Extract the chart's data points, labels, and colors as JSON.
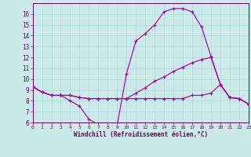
{
  "bg_color": "#cceaea",
  "line_color": "#aa00aa",
  "grid_color": "#aadddd",
  "xlabel": "Windchill (Refroidissement éolien,°C)",
  "xlabel_color": "#660066",
  "tick_color": "#660066",
  "ylim": [
    6,
    17
  ],
  "xlim": [
    0,
    23
  ],
  "yticks": [
    6,
    7,
    8,
    9,
    10,
    11,
    12,
    13,
    14,
    15,
    16
  ],
  "xticks": [
    0,
    1,
    2,
    3,
    4,
    5,
    6,
    7,
    8,
    9,
    10,
    11,
    12,
    13,
    14,
    15,
    16,
    17,
    18,
    19,
    20,
    21,
    22,
    23
  ],
  "series": [
    [
      9.3,
      8.8,
      8.5,
      8.5,
      8.0,
      7.5,
      6.3,
      5.8,
      5.8,
      5.7,
      10.5,
      13.5,
      14.2,
      15.0,
      16.2,
      16.5,
      16.5,
      16.2,
      14.8,
      12.1,
      9.5,
      8.3,
      8.2,
      7.7
    ],
    [
      9.3,
      8.8,
      8.5,
      8.5,
      8.5,
      8.3,
      8.2,
      8.2,
      8.2,
      8.2,
      8.2,
      8.7,
      9.2,
      9.8,
      10.2,
      10.7,
      11.1,
      11.5,
      11.8,
      12.0,
      9.5,
      8.3,
      8.2,
      7.7
    ],
    [
      9.3,
      8.8,
      8.5,
      8.5,
      8.5,
      8.3,
      8.2,
      8.2,
      8.2,
      8.2,
      8.2,
      8.2,
      8.2,
      8.2,
      8.2,
      8.2,
      8.2,
      8.5,
      8.5,
      8.7,
      9.5,
      8.3,
      8.2,
      7.7
    ]
  ],
  "figsize": [
    3.2,
    2.0
  ],
  "dpi": 100
}
